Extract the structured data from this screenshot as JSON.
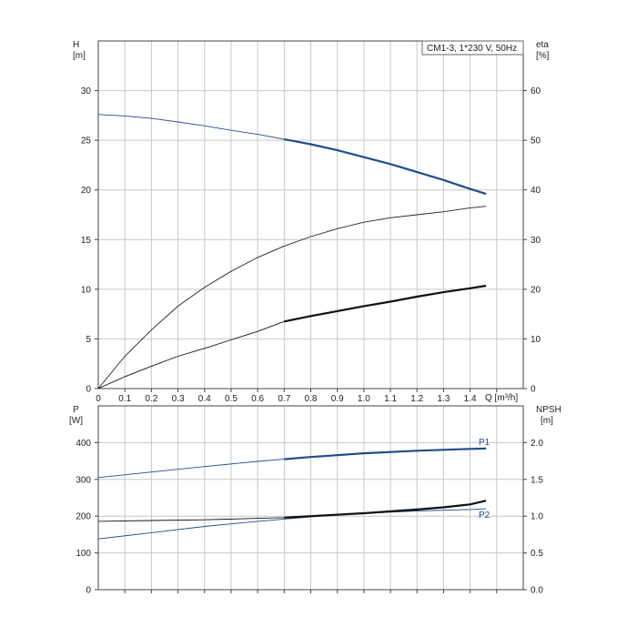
{
  "chart_data": [
    {
      "type": "line",
      "title": "CM1-3, 1*230 V, 50Hz",
      "xlabel": "Q [m³/h]",
      "ylabel_left": {
        "name": "H",
        "unit": "[m]"
      },
      "ylabel_right": {
        "name": "eta",
        "unit": "[%]"
      },
      "xlim": [
        0,
        1.6
      ],
      "ylim_left": [
        0,
        35
      ],
      "ylim_right": [
        0,
        70
      ],
      "x_ticks": [
        "0",
        "0.1",
        "0.2",
        "0.3",
        "0.4",
        "0.5",
        "0.6",
        "0.7",
        "0.8",
        "0.9",
        "1.0",
        "1.1",
        "1.2",
        "1.3",
        "1.4"
      ],
      "y_ticks_left": [
        "0",
        "5",
        "10",
        "15",
        "20",
        "25",
        "30"
      ],
      "y_ticks_right": [
        "0",
        "10",
        "20",
        "30",
        "40",
        "50",
        "60"
      ],
      "grid": true,
      "legend": "top-right",
      "series": [
        {
          "axis": "left",
          "color": "#1f4e8c",
          "x": [
            0,
            0.1,
            0.2,
            0.3,
            0.4,
            0.5,
            0.6,
            0.7,
            0.8,
            0.9,
            1.0,
            1.1,
            1.2,
            1.3,
            1.4,
            1.46
          ],
          "y": [
            27.6,
            27.45,
            27.2,
            26.85,
            26.45,
            26.0,
            25.6,
            25.1,
            24.6,
            24.0,
            23.3,
            22.6,
            21.8,
            21.0,
            20.1,
            19.6
          ],
          "duty_from": 0.7
        },
        {
          "axis": "right",
          "color": "#222222",
          "x": [
            0,
            0.1,
            0.2,
            0.3,
            0.4,
            0.5,
            0.6,
            0.7,
            0.8,
            0.9,
            1.0,
            1.1,
            1.2,
            1.3,
            1.4,
            1.46
          ],
          "y": [
            0,
            6.5,
            11.8,
            16.6,
            20.4,
            23.6,
            26.4,
            28.7,
            30.6,
            32.2,
            33.5,
            34.4,
            35.0,
            35.6,
            36.4,
            36.7
          ],
          "duty_from": null
        },
        {
          "axis": "right",
          "color": "#111111",
          "x": [
            0,
            0.1,
            0.2,
            0.3,
            0.4,
            0.5,
            0.6,
            0.7,
            0.8,
            0.9,
            1.0,
            1.1,
            1.2,
            1.3,
            1.4,
            1.46
          ],
          "y": [
            0,
            2.4,
            4.5,
            6.5,
            8.1,
            9.8,
            11.5,
            13.5,
            14.6,
            15.6,
            16.6,
            17.5,
            18.5,
            19.4,
            20.2,
            20.7
          ],
          "duty_from": 0.7
        }
      ]
    },
    {
      "type": "line",
      "title": "",
      "xlabel": "",
      "ylabel_left": {
        "name": "P",
        "unit": "[W]"
      },
      "ylabel_right": {
        "name": "NPSH",
        "unit": "[m]"
      },
      "xlim": [
        0,
        1.6
      ],
      "ylim_left": [
        0,
        500
      ],
      "ylim_right": [
        0,
        2.5
      ],
      "y_ticks_left": [
        "0",
        "100",
        "200",
        "300",
        "400"
      ],
      "y_ticks_right": [
        "0.0",
        "0.5",
        "1.0",
        "1.5",
        "2.0"
      ],
      "grid": true,
      "series": [
        {
          "name": "P1",
          "axis": "left",
          "color": "#1f4e8c",
          "x": [
            0,
            0.2,
            0.4,
            0.6,
            0.7,
            0.8,
            1.0,
            1.2,
            1.4,
            1.46
          ],
          "y": [
            305,
            320,
            335,
            349,
            355,
            361,
            371,
            378,
            383,
            384
          ],
          "duty_from": 0.7
        },
        {
          "name": "P2",
          "axis": "left",
          "color": "#1f4e8c",
          "x": [
            0,
            0.2,
            0.4,
            0.6,
            0.7,
            0.8,
            1.0,
            1.2,
            1.4,
            1.46
          ],
          "y": [
            138,
            155,
            172,
            186,
            192,
            198,
            208,
            214,
            218,
            220
          ],
          "duty_from": null
        },
        {
          "axis": "right",
          "color": "#111111",
          "x": [
            0,
            0.2,
            0.4,
            0.6,
            0.7,
            0.8,
            1.0,
            1.2,
            1.3,
            1.4,
            1.46
          ],
          "y": [
            0.93,
            0.94,
            0.95,
            0.97,
            0.98,
            1.0,
            1.04,
            1.09,
            1.12,
            1.16,
            1.21
          ],
          "duty_from": 0.7
        }
      ]
    }
  ]
}
